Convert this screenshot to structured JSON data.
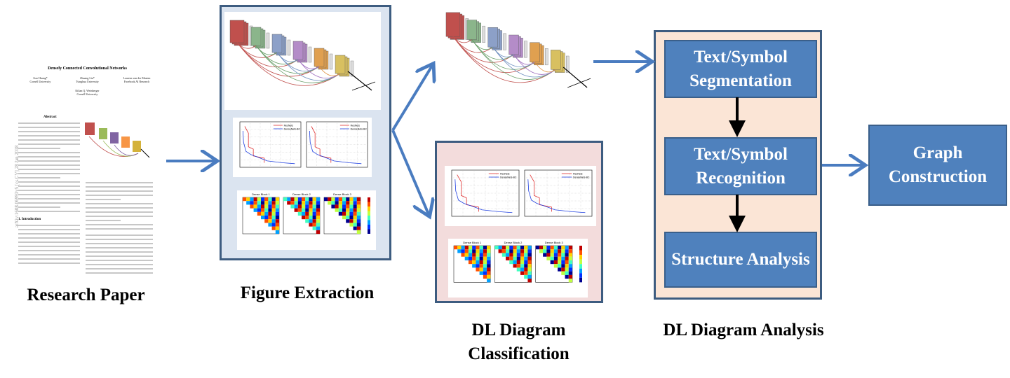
{
  "stages": {
    "paper": "Research Paper",
    "extraction": "Figure Extraction",
    "classification": "DL Diagram Classification",
    "analysis": "DL Diagram Analysis"
  },
  "analysis_steps": [
    "Text/Symbol Segmentation",
    "Text/Symbol Recognition",
    "Structure Analysis"
  ],
  "graph": "Graph Construction",
  "paper": {
    "title": "Densely Connected Convolutional Networks",
    "authors": [
      "Gao Huang*",
      "Cornell University",
      "Zhuang Liu*",
      "Tsinghua University",
      "Laurens van der Maaten",
      "Facebook AI Research",
      "Kilian Q. Weinberger",
      "Cornell University"
    ],
    "abstract_heading": "Abstract",
    "intro_heading": "1. Introduction",
    "arxiv_id": "arXiv:1608.06993v5 [cs.CV] 28 Jan 2018"
  },
  "figure_labels": {
    "heatmap_titles": [
      "Dense Block 1",
      "Dense Block 2",
      "Dense Block 3"
    ],
    "legend_a": "ResNets",
    "legend_b": "DenseNets-BC",
    "heatmap_xlabel": "Target layer (ℓ)",
    "heatmap_ylabel": "Source layer (s)"
  },
  "colors": {
    "box": "#4f81bd",
    "arrow": "#4a7cc0",
    "panel_border": "#3d5c80"
  }
}
